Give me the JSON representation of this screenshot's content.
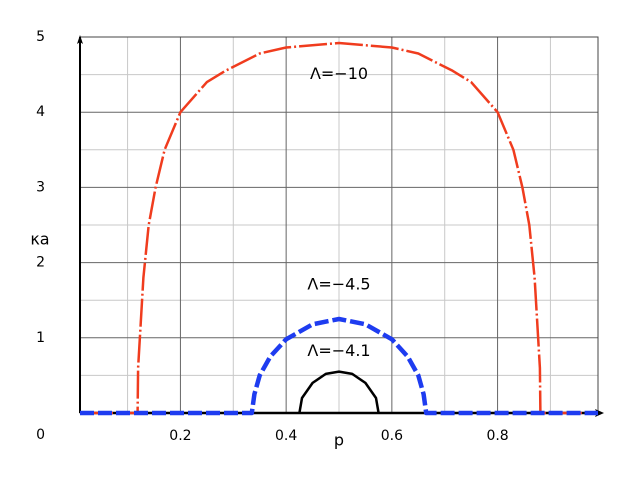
{
  "chart_data": {
    "type": "line",
    "xlabel": "p",
    "ylabel": "κa",
    "xlim": [
      0.01,
      0.99
    ],
    "ylim": [
      0,
      5
    ],
    "xticks": [
      0.2,
      0.4,
      0.6,
      0.8
    ],
    "yticks": [
      0,
      1,
      2,
      3,
      4,
      5
    ],
    "xgrid_minor": [
      0.1,
      0.3,
      0.5,
      0.7,
      0.9
    ],
    "ygrid_minor": [
      0.5,
      1.5,
      2.5,
      3.5,
      4.5
    ],
    "grid": true,
    "annotations": [
      {
        "text": "Λ=−10",
        "x": 0.5,
        "y": 4.5
      },
      {
        "text": "Λ=−4.5",
        "x": 0.5,
        "y": 1.7
      },
      {
        "text": "Λ=−4.1",
        "x": 0.5,
        "y": 0.82
      }
    ],
    "series": [
      {
        "name": "Λ=−10",
        "color": "#f03c1e",
        "x": [
          0.01,
          0.05,
          0.1,
          0.119,
          0.12,
          0.13,
          0.14,
          0.153,
          0.17,
          0.2,
          0.25,
          0.285,
          0.35,
          0.4,
          0.5,
          0.6,
          0.65,
          0.715,
          0.75,
          0.8,
          0.83,
          0.847,
          0.86,
          0.87,
          0.88,
          0.881,
          0.9,
          0.95,
          0.99
        ],
        "values": [
          0,
          0,
          0,
          0,
          0.6,
          1.8,
          2.5,
          3,
          3.5,
          4,
          4.4,
          4.55,
          4.78,
          4.86,
          4.92,
          4.86,
          4.78,
          4.55,
          4.4,
          4,
          3.5,
          3,
          2.5,
          1.8,
          0.6,
          0,
          0,
          0,
          0
        ]
      },
      {
        "name": "Λ=−4.5",
        "color": "#1e3cf0",
        "x": [
          0.01,
          0.1,
          0.2,
          0.3,
          0.335,
          0.34,
          0.35,
          0.37,
          0.4,
          0.45,
          0.5,
          0.55,
          0.6,
          0.63,
          0.65,
          0.66,
          0.665,
          0.7,
          0.8,
          0.9,
          0.99
        ],
        "values": [
          0,
          0,
          0,
          0,
          0,
          0.25,
          0.5,
          0.75,
          0.98,
          1.18,
          1.25,
          1.18,
          0.98,
          0.75,
          0.5,
          0.25,
          0,
          0,
          0,
          0,
          0
        ]
      },
      {
        "name": "Λ=−4.1",
        "color": "#000000",
        "x": [
          0.425,
          0.43,
          0.45,
          0.475,
          0.5,
          0.525,
          0.55,
          0.57,
          0.575
        ],
        "values": [
          0,
          0.2,
          0.4,
          0.52,
          0.55,
          0.52,
          0.4,
          0.2,
          0
        ]
      }
    ]
  }
}
